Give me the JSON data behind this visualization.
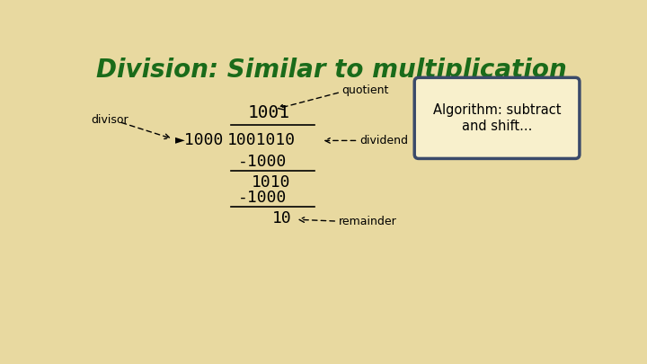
{
  "title": "Division: Similar to multiplication",
  "title_color": "#1a6b1a",
  "title_fontsize": 20,
  "bg_color": "#e8d9a0",
  "algorithm_text": "Algorithm: subtract\nand shift...",
  "algorithm_box_bg": "#f8f0cc",
  "algorithm_box_edge": "#3a4a6a",
  "mono_font": "monospace",
  "label_font": "sans-serif",
  "quotient": "1001",
  "divisor_arrow": "►1000",
  "dividend": "1001010",
  "step1_sub": "-1000",
  "step1_result": "1010",
  "step2_sub": "-1000",
  "step2_result": "10"
}
